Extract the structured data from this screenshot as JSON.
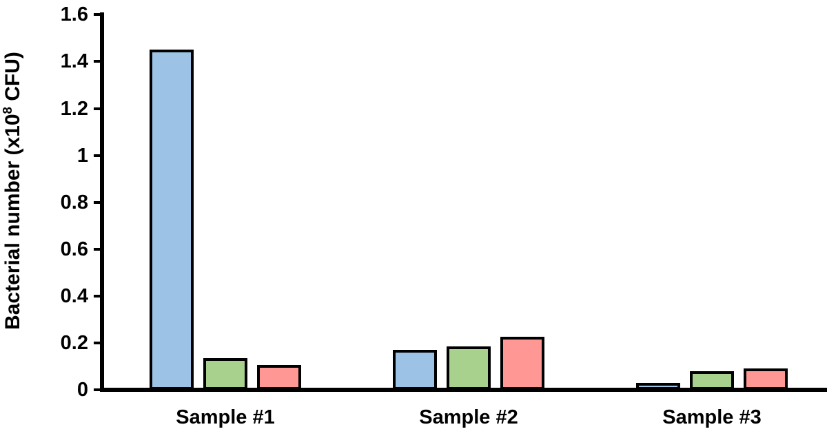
{
  "chart_data": {
    "type": "bar",
    "categories": [
      "Sample #1",
      "Sample #2",
      "Sample #3"
    ],
    "series": [
      {
        "name": "blue-series",
        "color": "#9CC3E5",
        "border_color": "#000000",
        "values": [
          1.45,
          0.17,
          0.03
        ]
      },
      {
        "name": "green-series",
        "color": "#A9D18E",
        "border_color": "#000000",
        "values": [
          0.135,
          0.185,
          0.08
        ]
      },
      {
        "name": "red-series",
        "color": "#FF9794",
        "border_color": "#000000",
        "values": [
          0.105,
          0.225,
          0.09
        ]
      }
    ],
    "ylabel": "Bacterial number (x10⁸ CFU)",
    "ylabel_parts": {
      "prefix": "Bacterial number (x10",
      "superscript": "8",
      "suffix": " CFU)"
    },
    "ylim": [
      0,
      1.6
    ],
    "yticks": [
      0,
      0.2,
      0.4,
      0.6,
      0.8,
      1,
      1.2,
      1.4,
      1.6
    ],
    "ytick_labels": [
      "0",
      "0.2",
      "0.4",
      "0.6",
      "0.8",
      "1",
      "1.2",
      "1.4",
      "1.6"
    ],
    "grid": false,
    "legend": "none",
    "axis_color": "#000000",
    "background": "#FFFFFF"
  }
}
